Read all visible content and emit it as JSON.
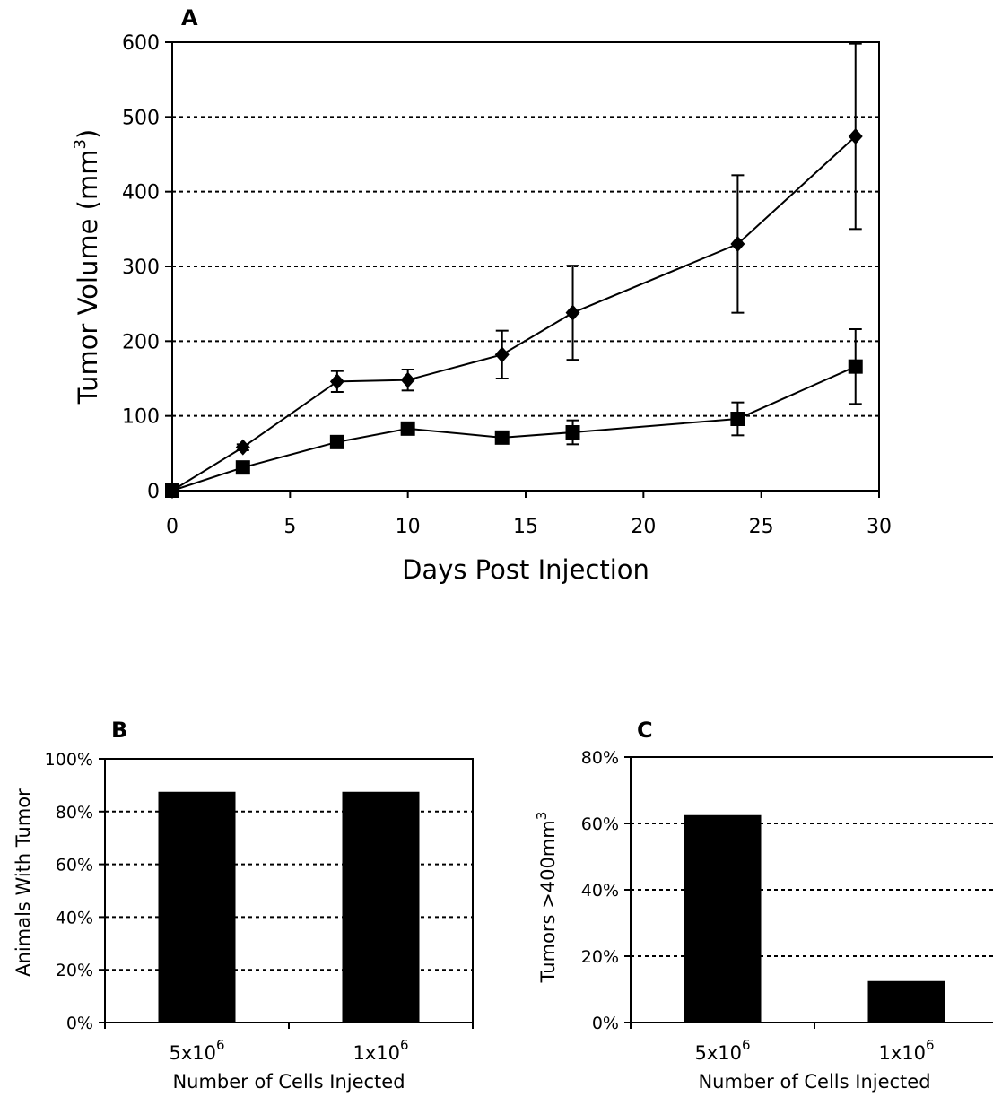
{
  "chart_data": [
    {
      "panel": "A",
      "type": "line",
      "title": "",
      "xlabel": "Days Post Injection",
      "ylabel": "Tumor Volume (mm",
      "ylabel_superscript": "3",
      "ylabel_suffix": ")",
      "xlim": [
        0,
        30
      ],
      "ylim": [
        0,
        600
      ],
      "xticks": [
        "0",
        "5",
        "10",
        "15",
        "20",
        "25",
        "30"
      ],
      "yticks": [
        "0",
        "100",
        "200",
        "300",
        "400",
        "500",
        "600"
      ],
      "grid": "horizontal dotted",
      "legend": "none",
      "series": [
        {
          "marker": "diamond",
          "x": [
            0,
            3,
            7,
            10,
            14,
            17,
            24,
            29
          ],
          "y": [
            0,
            58,
            146,
            148,
            182,
            238,
            330,
            474
          ],
          "err": [
            0,
            4,
            14,
            14,
            32,
            63,
            92,
            124
          ]
        },
        {
          "marker": "square",
          "x": [
            0,
            3,
            7,
            10,
            14,
            17,
            24,
            29
          ],
          "y": [
            0,
            31,
            65,
            83,
            71,
            78,
            96,
            166
          ],
          "err": [
            0,
            3,
            5,
            6,
            5,
            16,
            22,
            50
          ]
        }
      ]
    },
    {
      "panel": "B",
      "type": "bar",
      "title": "",
      "xlabel": "Number of Cells Injected",
      "ylabel": "Animals With Tumor",
      "categories": [
        {
          "base": "5x10",
          "exp": "6"
        },
        {
          "base": "1x10",
          "exp": "6"
        }
      ],
      "values": [
        87.5,
        87.5
      ],
      "ylim": [
        0,
        100
      ],
      "yticks": [
        "0%",
        "20%",
        "40%",
        "60%",
        "80%",
        "100%"
      ],
      "grid": "horizontal dotted",
      "legend": "none"
    },
    {
      "panel": "C",
      "type": "bar",
      "title": "",
      "xlabel": "Number of Cells Injected",
      "ylabel": "Tumors >400mm",
      "ylabel_superscript": "3",
      "categories": [
        {
          "base": "5x10",
          "exp": "6"
        },
        {
          "base": "1x10",
          "exp": "6"
        }
      ],
      "values": [
        62.5,
        12.5
      ],
      "ylim": [
        0,
        80
      ],
      "yticks": [
        "0%",
        "20%",
        "40%",
        "60%",
        "80%"
      ],
      "grid": "horizontal dotted",
      "legend": "none"
    }
  ]
}
